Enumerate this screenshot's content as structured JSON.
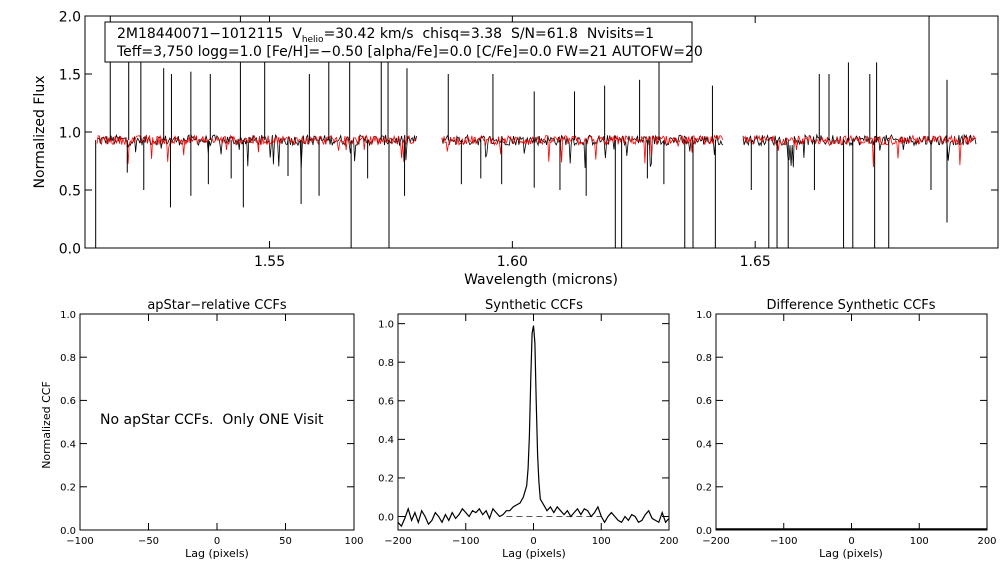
{
  "spectrum_panel": {
    "info_line1": {
      "star_id": "2M18440071−1012115",
      "v_symbol": "V",
      "v_subscript": "helio",
      "v_value": "=30.42 km/s",
      "chisq": "chisq=3.38",
      "snr": "S/N=61.8",
      "nvisits": "Nvisits=1"
    },
    "info_line2": "Teff=3,750 logg=1.0 [Fe/H]=−0.50 [alpha/Fe]=0.0 [C/Fe]=0.0 FW=21 AUTOFW=20",
    "xlabel": "Wavelength (microns)",
    "ylabel": "Normalized Flux"
  },
  "ccf_panels": {
    "ylabel": "Normalized CCF",
    "xlabel": "Lag (pixels)",
    "apstar_title": "apStar−relative CCFs",
    "apstar_message": "No apStar CCFs.  Only ONE Visit",
    "synth_title": "Synthetic CCFs",
    "diff_title": "Difference Synthetic CCFs"
  },
  "colors": {
    "observed": "#000000",
    "model": "#ff0000",
    "axis": "#000000"
  },
  "chart_data": [
    {
      "type": "line",
      "title": "",
      "xlabel": "Wavelength (microns)",
      "ylabel": "Normalized Flux",
      "xlim": [
        1.512,
        1.7
      ],
      "ylim": [
        0.0,
        2.0
      ],
      "xticks": [
        1.55,
        1.6,
        1.65
      ],
      "xtick_labels": [
        "1.55",
        "1.60",
        "1.65"
      ],
      "yticks": [
        0.0,
        0.5,
        1.0,
        1.5,
        2.0
      ],
      "ytick_labels": [
        "0.0",
        "0.5",
        "1.0",
        "1.5",
        "2.0"
      ],
      "chip_ranges": [
        [
          1.5145,
          1.5805
        ],
        [
          1.5855,
          1.6435
        ],
        [
          1.6475,
          1.6955
        ]
      ],
      "continuum": 0.93,
      "series": [
        {
          "name": "observed",
          "color": "#000000",
          "noise": 0.045
        },
        {
          "name": "model",
          "color": "#ff0000",
          "noise": 0.04
        }
      ],
      "absorption_lines": [
        [
          1.5142,
          0.0
        ],
        [
          1.5207,
          0.65
        ],
        [
          1.5241,
          0.5
        ],
        [
          1.5296,
          0.35
        ],
        [
          1.5338,
          0.45
        ],
        [
          1.5374,
          0.55
        ],
        [
          1.5421,
          0.6
        ],
        [
          1.5446,
          0.35
        ],
        [
          1.5538,
          0.62
        ],
        [
          1.5565,
          0.38
        ],
        [
          1.5602,
          0.45
        ],
        [
          1.5668,
          0.0
        ],
        [
          1.5702,
          0.6
        ],
        [
          1.5746,
          0.0
        ],
        [
          1.5778,
          0.45
        ],
        [
          1.5895,
          0.55
        ],
        [
          1.5935,
          0.6
        ],
        [
          1.5978,
          0.55
        ],
        [
          1.6045,
          0.52
        ],
        [
          1.6098,
          0.5
        ],
        [
          1.6152,
          0.45
        ],
        [
          1.6212,
          0.0
        ],
        [
          1.6225,
          0.0
        ],
        [
          1.6278,
          0.6
        ],
        [
          1.6312,
          0.55
        ],
        [
          1.6355,
          0.0
        ],
        [
          1.6372,
          0.0
        ],
        [
          1.6418,
          0.0
        ],
        [
          1.6492,
          0.5
        ],
        [
          1.6528,
          0.0
        ],
        [
          1.6545,
          0.0
        ],
        [
          1.6568,
          0.0
        ],
        [
          1.6622,
          0.5
        ],
        [
          1.6682,
          0.0
        ],
        [
          1.6701,
          0.0
        ],
        [
          1.6746,
          0.0
        ],
        [
          1.6775,
          0.0
        ],
        [
          1.6862,
          0.5
        ],
        [
          1.6895,
          0.22
        ]
      ],
      "emission_spikes": [
        [
          1.5172,
          2.0
        ],
        [
          1.521,
          1.7
        ],
        [
          1.5235,
          1.6
        ],
        [
          1.5282,
          1.55
        ],
        [
          1.5298,
          1.5
        ],
        [
          1.5338,
          1.52
        ],
        [
          1.5378,
          1.5
        ],
        [
          1.544,
          2.0
        ],
        [
          1.549,
          1.6
        ],
        [
          1.5582,
          1.5
        ],
        [
          1.5622,
          1.6
        ],
        [
          1.5665,
          1.75
        ],
        [
          1.573,
          1.65
        ],
        [
          1.5744,
          1.7
        ],
        [
          1.5783,
          1.55
        ],
        [
          1.5868,
          1.5
        ],
        [
          1.596,
          1.5
        ],
        [
          1.6045,
          1.35
        ],
        [
          1.6128,
          1.35
        ],
        [
          1.619,
          1.4
        ],
        [
          1.6262,
          1.45
        ],
        [
          1.6302,
          1.6
        ],
        [
          1.6412,
          1.4
        ],
        [
          1.6632,
          1.5
        ],
        [
          1.6652,
          1.5
        ],
        [
          1.6692,
          1.6
        ],
        [
          1.6736,
          1.5
        ],
        [
          1.675,
          1.6
        ],
        [
          1.6858,
          2.0
        ],
        [
          1.6895,
          1.45
        ]
      ]
    },
    {
      "type": "line",
      "title": "apStar−relative CCFs",
      "xlabel": "Lag (pixels)",
      "ylabel": "Normalized CCF",
      "xlim": [
        -100,
        100
      ],
      "ylim": [
        0.0,
        1.0
      ],
      "xticks": [
        -100,
        -50,
        0,
        50,
        100
      ],
      "xtick_labels": [
        "−100",
        "−50",
        "0",
        "50",
        "100"
      ],
      "yticks": [
        0.0,
        0.2,
        0.4,
        0.6,
        0.8,
        1.0
      ],
      "ytick_labels": [
        "0.0",
        "0.2",
        "0.4",
        "0.6",
        "0.8",
        "1.0"
      ],
      "series": []
    },
    {
      "type": "line",
      "title": "Synthetic CCFs",
      "xlabel": "Lag (pixels)",
      "ylabel": "",
      "xlim": [
        -200,
        200
      ],
      "ylim": [
        -0.07,
        1.05
      ],
      "xticks": [
        -200,
        -100,
        0,
        100,
        200
      ],
      "xtick_labels": [
        "−200",
        "−100",
        "0",
        "100",
        "200"
      ],
      "yticks": [
        0.0,
        0.2,
        0.4,
        0.6,
        0.8,
        1.0
      ],
      "ytick_labels": [
        "0.0",
        "0.2",
        "0.4",
        "0.6",
        "0.8",
        "1.0"
      ],
      "reference_line": {
        "y": 0.0,
        "x_range": [
          -40,
          100
        ],
        "style": "dashed",
        "color": "#555555"
      },
      "series": [
        {
          "name": "ccf",
          "color": "#000000",
          "x": [
            -200,
            -195,
            -190,
            -185,
            -180,
            -175,
            -170,
            -165,
            -160,
            -155,
            -150,
            -145,
            -140,
            -135,
            -130,
            -125,
            -120,
            -115,
            -110,
            -105,
            -100,
            -95,
            -90,
            -85,
            -80,
            -75,
            -70,
            -65,
            -60,
            -55,
            -50,
            -45,
            -40,
            -35,
            -30,
            -25,
            -20,
            -15,
            -10,
            -8,
            -6,
            -4,
            -2,
            0,
            2,
            4,
            6,
            8,
            10,
            15,
            20,
            25,
            30,
            35,
            40,
            45,
            50,
            55,
            60,
            65,
            70,
            75,
            80,
            85,
            90,
            95,
            100,
            105,
            110,
            115,
            120,
            125,
            130,
            135,
            140,
            145,
            150,
            155,
            160,
            165,
            170,
            175,
            180,
            185,
            190,
            195,
            200
          ],
          "y": [
            -0.03,
            -0.05,
            -0.01,
            0.04,
            -0.02,
            0.02,
            -0.03,
            0.03,
            0.0,
            -0.04,
            -0.02,
            0.02,
            0.0,
            -0.03,
            0.01,
            -0.02,
            0.02,
            -0.01,
            0.01,
            0.04,
            0.02,
            0.0,
            0.03,
            0.02,
            0.04,
            0.01,
            0.03,
            -0.01,
            0.04,
            0.02,
            0.0,
            0.01,
            0.03,
            0.03,
            0.05,
            0.06,
            0.07,
            0.1,
            0.16,
            0.25,
            0.42,
            0.72,
            0.95,
            0.99,
            0.9,
            0.6,
            0.32,
            0.18,
            0.09,
            0.06,
            0.03,
            0.05,
            0.02,
            0.05,
            0.03,
            0.01,
            0.03,
            0.0,
            0.02,
            0.04,
            0.01,
            0.04,
            0.03,
            0.0,
            0.02,
            0.05,
            0.0,
            -0.03,
            0.0,
            0.02,
            0.0,
            -0.02,
            -0.03,
            0.0,
            -0.02,
            0.01,
            0.0,
            -0.03,
            -0.02,
            0.01,
            0.03,
            -0.01,
            -0.02,
            -0.03,
            0.02,
            -0.03,
            -0.01
          ]
        }
      ]
    },
    {
      "type": "line",
      "title": "Difference Synthetic CCFs",
      "xlabel": "Lag (pixels)",
      "ylabel": "",
      "xlim": [
        -200,
        200
      ],
      "ylim": [
        0.0,
        1.0
      ],
      "xticks": [
        -200,
        -100,
        0,
        100,
        200
      ],
      "xtick_labels": [
        "−200",
        "−100",
        "0",
        "100",
        "200"
      ],
      "yticks": [
        0.0,
        0.2,
        0.4,
        0.6,
        0.8,
        1.0
      ],
      "ytick_labels": [
        "0.0",
        "0.2",
        "0.4",
        "0.6",
        "0.8",
        "1.0"
      ],
      "series": [
        {
          "name": "diff",
          "color": "#000000",
          "x": [
            -200,
            200
          ],
          "y": [
            0.0,
            0.0
          ]
        }
      ]
    }
  ]
}
